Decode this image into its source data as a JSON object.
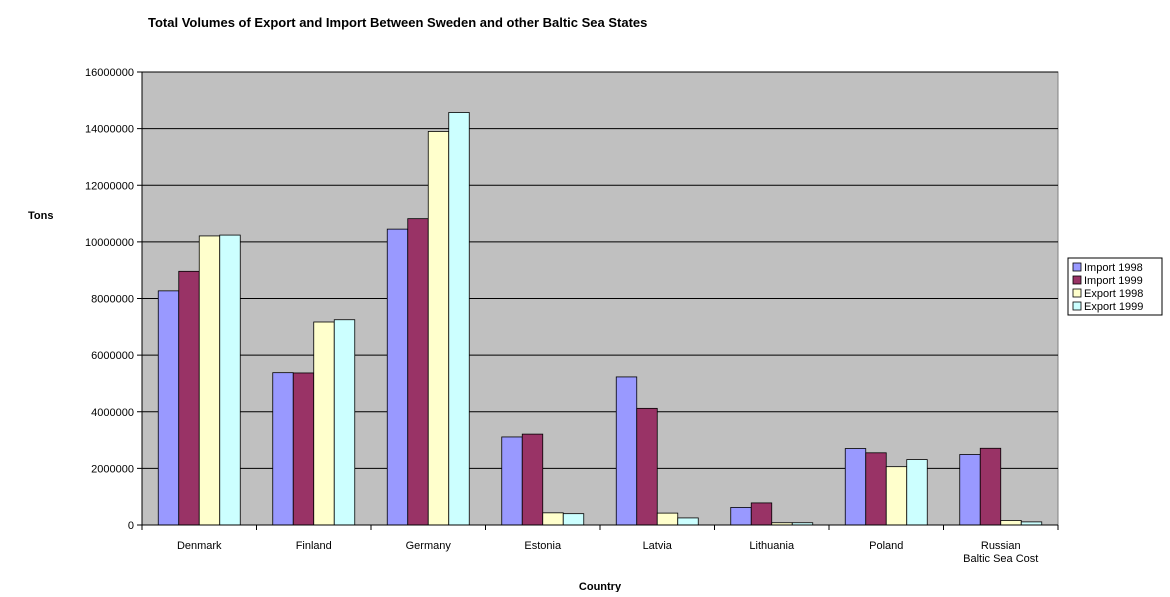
{
  "chart_data": {
    "type": "bar",
    "title": "Total Volumes of Export and Import Between Sweden and other Baltic Sea States",
    "xlabel": "Country",
    "ylabel": "Tons",
    "ylim": [
      0,
      16000000
    ],
    "yticks": [
      0,
      2000000,
      4000000,
      6000000,
      8000000,
      10000000,
      12000000,
      14000000,
      16000000
    ],
    "ytick_labels": [
      "0",
      "2000000",
      "4000000",
      "6000000",
      "8000000",
      "10000000",
      "12000000",
      "14000000",
      "16000000"
    ],
    "grid": true,
    "legend_position": "right",
    "plot_background": "#c0c0c0",
    "categories": [
      [
        "Denmark"
      ],
      [
        "Finland"
      ],
      [
        "Germany"
      ],
      [
        "Estonia"
      ],
      [
        "Latvia"
      ],
      [
        "Lithuania"
      ],
      [
        "Poland"
      ],
      [
        "Russian",
        "Baltic Sea Cost"
      ]
    ],
    "series": [
      {
        "name": "Import 1998",
        "color": "#9999ff",
        "values": [
          8270000,
          5380000,
          10450000,
          3110000,
          5230000,
          620000,
          2700000,
          2490000
        ]
      },
      {
        "name": "Import 1999",
        "color": "#993366",
        "values": [
          8960000,
          5370000,
          10820000,
          3210000,
          4120000,
          780000,
          2550000,
          2710000
        ]
      },
      {
        "name": "Export 1998",
        "color": "#ffffcc",
        "values": [
          10210000,
          7170000,
          13900000,
          430000,
          420000,
          80000,
          2060000,
          160000
        ]
      },
      {
        "name": "Export 1999",
        "color": "#ccffff",
        "values": [
          10240000,
          7250000,
          14570000,
          400000,
          250000,
          80000,
          2310000,
          110000
        ]
      }
    ]
  }
}
